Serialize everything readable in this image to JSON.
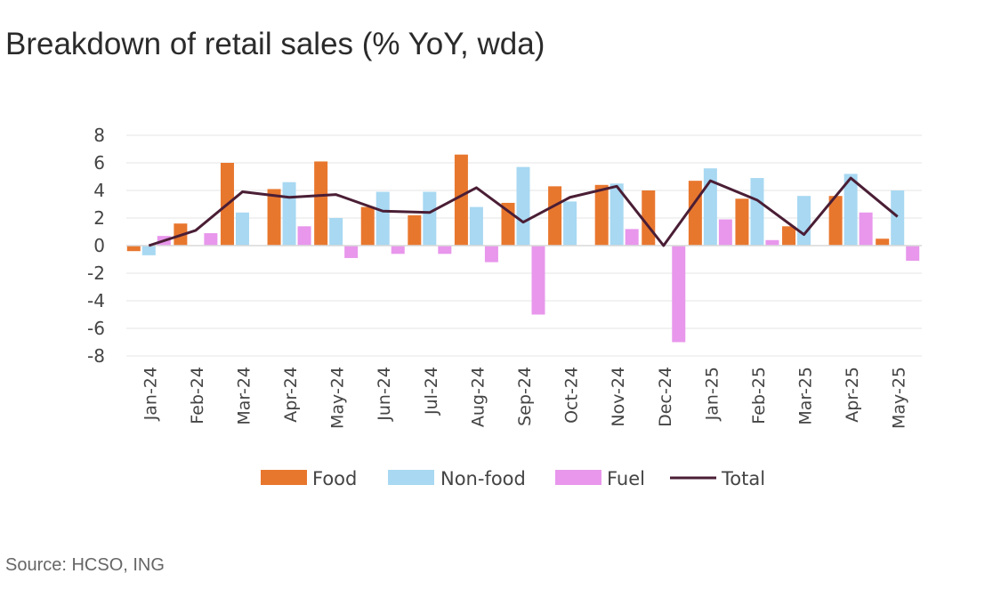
{
  "title": "Breakdown of retail sales (% YoY, wda)",
  "source": "Source: HCSO, ING",
  "chart_data": {
    "type": "bar",
    "categories": [
      "Jan-24",
      "Feb-24",
      "Mar-24",
      "Apr-24",
      "May-24",
      "Jun-24",
      "Jul-24",
      "Aug-24",
      "Sep-24",
      "Oct-24",
      "Nov-24",
      "Dec-24",
      "Jan-25",
      "Feb-25",
      "Mar-25",
      "Apr-25",
      "May-25"
    ],
    "ylim": [
      -8,
      8
    ],
    "yticks": [
      8,
      6,
      4,
      2,
      0,
      -2,
      -4,
      -6,
      -8
    ],
    "grid": true,
    "legend_position": "bottom",
    "series": [
      {
        "name": "Food",
        "type": "bar",
        "color": "#e8772e",
        "values": [
          -0.4,
          1.6,
          6.0,
          4.1,
          6.1,
          2.8,
          2.2,
          6.6,
          3.1,
          4.3,
          4.4,
          4.0,
          4.7,
          3.4,
          1.4,
          3.6,
          0.5
        ]
      },
      {
        "name": "Non-food",
        "type": "bar",
        "color": "#a8d8f2",
        "values": [
          -0.7,
          0.0,
          2.4,
          4.6,
          2.0,
          3.9,
          3.9,
          2.8,
          5.7,
          3.2,
          4.5,
          0.0,
          5.6,
          4.9,
          3.6,
          5.2,
          4.0
        ]
      },
      {
        "name": "Fuel",
        "type": "bar",
        "color": "#e897ec",
        "values": [
          0.7,
          0.9,
          0.0,
          1.4,
          -0.9,
          -0.6,
          -0.6,
          -1.2,
          -5.0,
          0.0,
          1.2,
          -7.0,
          1.9,
          0.4,
          0.0,
          2.4,
          -1.1
        ]
      },
      {
        "name": "Total",
        "type": "line",
        "color": "#4a1e35",
        "values": [
          0.0,
          1.1,
          3.9,
          3.5,
          3.7,
          2.5,
          2.4,
          4.2,
          1.7,
          3.5,
          4.3,
          0.0,
          4.7,
          3.3,
          0.8,
          4.9,
          2.1
        ]
      }
    ]
  }
}
